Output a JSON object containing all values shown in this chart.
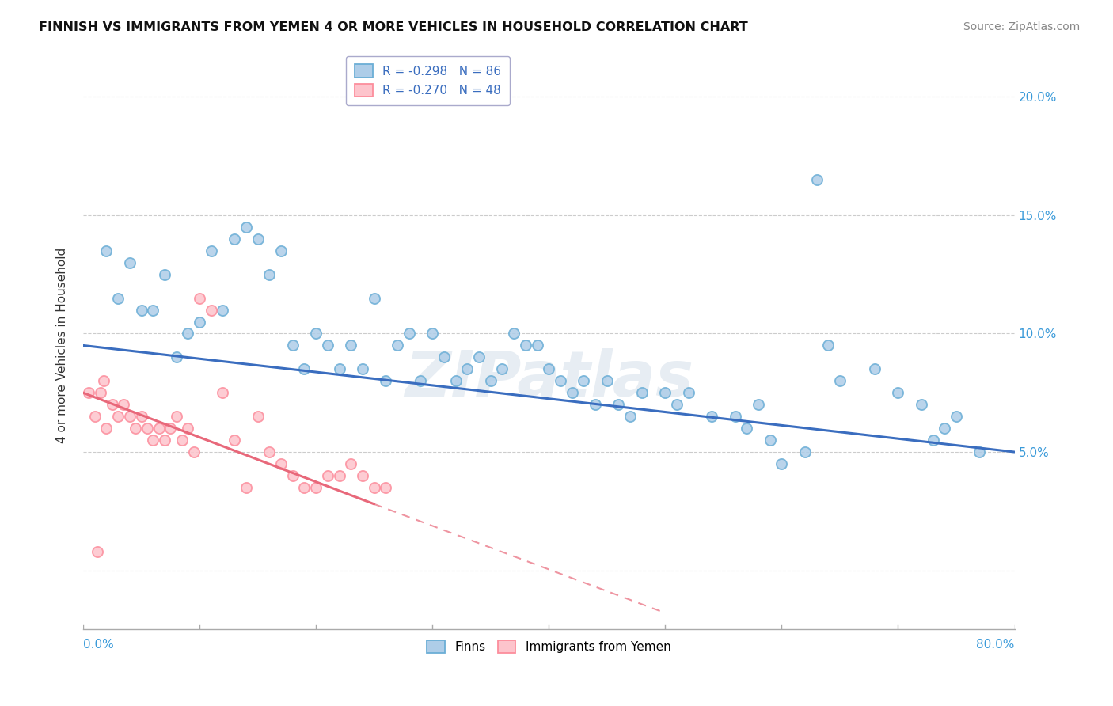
{
  "title": "FINNISH VS IMMIGRANTS FROM YEMEN 4 OR MORE VEHICLES IN HOUSEHOLD CORRELATION CHART",
  "source": "Source: ZipAtlas.com",
  "ylabel": "4 or more Vehicles in Household",
  "xmin": 0.0,
  "xmax": 80.0,
  "ymin": -2.5,
  "ymax": 21.5,
  "yticks": [
    0.0,
    5.0,
    10.0,
    15.0,
    20.0
  ],
  "legend_entry1": "R = -0.298   N = 86",
  "legend_entry2": "R = -0.270   N = 48",
  "legend_label1": "Finns",
  "legend_label2": "Immigrants from Yemen",
  "blue_color": "#6baed6",
  "pink_color": "#fc8d9c",
  "blue_line_color": "#3a6dbf",
  "pink_line_color": "#e8687a",
  "blue_dot_fill": "#aecde8",
  "pink_dot_fill": "#fdc4cc",
  "watermark_text": "ZIPatlas",
  "blue_line_x0": 0.0,
  "blue_line_y0": 9.5,
  "blue_line_x1": 80.0,
  "blue_line_y1": 5.0,
  "pink_line_x0": 0.0,
  "pink_line_y0": 7.5,
  "pink_line_x1": 25.0,
  "pink_line_y1": 2.8,
  "pink_dash_x0": 25.0,
  "pink_dash_y0": 2.8,
  "pink_dash_x1": 50.0,
  "pink_dash_y1": -1.8,
  "blue_x": [
    2,
    3,
    4,
    5,
    6,
    7,
    8,
    9,
    10,
    11,
    12,
    13,
    14,
    15,
    16,
    17,
    18,
    19,
    20,
    21,
    22,
    23,
    24,
    25,
    26,
    27,
    28,
    29,
    30,
    31,
    32,
    33,
    34,
    35,
    36,
    37,
    38,
    39,
    40,
    41,
    42,
    43,
    44,
    45,
    46,
    47,
    48,
    50,
    51,
    52,
    54,
    56,
    57,
    58,
    59,
    60,
    62,
    63,
    64,
    65,
    68,
    70,
    72,
    73,
    74,
    75,
    77
  ],
  "blue_y": [
    13.5,
    11.5,
    13.0,
    11.0,
    11.0,
    12.5,
    9.0,
    10.0,
    10.5,
    13.5,
    11.0,
    14.0,
    14.5,
    14.0,
    12.5,
    13.5,
    9.5,
    8.5,
    10.0,
    9.5,
    8.5,
    9.5,
    8.5,
    11.5,
    8.0,
    9.5,
    10.0,
    8.0,
    10.0,
    9.0,
    8.0,
    8.5,
    9.0,
    8.0,
    8.5,
    10.0,
    9.5,
    9.5,
    8.5,
    8.0,
    7.5,
    8.0,
    7.0,
    8.0,
    7.0,
    6.5,
    7.5,
    7.5,
    7.0,
    7.5,
    6.5,
    6.5,
    6.0,
    7.0,
    5.5,
    4.5,
    5.0,
    16.5,
    9.5,
    8.0,
    8.5,
    7.5,
    7.0,
    5.5,
    6.0,
    6.5,
    5.0
  ],
  "pink_x": [
    0.5,
    1.0,
    1.5,
    1.8,
    2.0,
    2.5,
    3.0,
    3.5,
    4.0,
    4.5,
    5.0,
    5.5,
    6.0,
    6.5,
    7.0,
    7.5,
    8.0,
    8.5,
    9.0,
    9.5,
    10.0,
    11.0,
    12.0,
    13.0,
    14.0,
    15.0,
    16.0,
    17.0,
    18.0,
    19.0,
    20.0,
    21.0,
    22.0,
    23.0,
    24.0,
    25.0,
    26.0,
    1.2
  ],
  "pink_y": [
    7.5,
    6.5,
    7.5,
    8.0,
    6.0,
    7.0,
    6.5,
    7.0,
    6.5,
    6.0,
    6.5,
    6.0,
    5.5,
    6.0,
    5.5,
    6.0,
    6.5,
    5.5,
    6.0,
    5.0,
    11.5,
    11.0,
    7.5,
    5.5,
    3.5,
    6.5,
    5.0,
    4.5,
    4.0,
    3.5,
    3.5,
    4.0,
    4.0,
    4.5,
    4.0,
    3.5,
    3.5,
    0.8
  ]
}
